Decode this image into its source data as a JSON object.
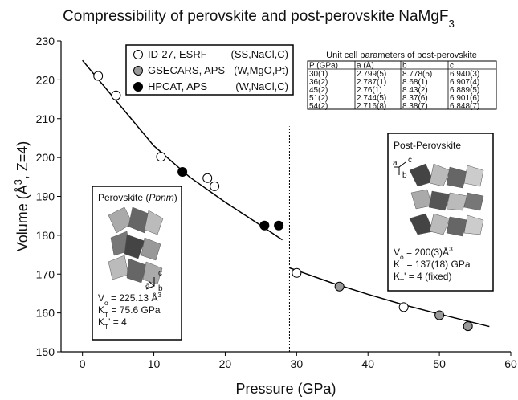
{
  "chart_data": {
    "type": "scatter",
    "title": [
      {
        "t": "Compressibility of perovskite and post-perovskite NaMgF"
      },
      {
        "t": "3",
        "style": "sub"
      }
    ],
    "xlabel": "Pressure (GPa)",
    "ylabel": [
      {
        "t": "Volume (Å"
      },
      {
        "t": "3",
        "style": "sup"
      },
      {
        "t": ", Z=4)"
      }
    ],
    "xlim": [
      -3,
      60
    ],
    "ylim": [
      150,
      230
    ],
    "xticks": [
      0,
      10,
      20,
      30,
      40,
      50,
      60
    ],
    "yticks": [
      150,
      160,
      170,
      180,
      190,
      200,
      210,
      220,
      230
    ],
    "series": [
      {
        "name": "ID-27, ESRF",
        "conditions": "(SS,NaCl,C)",
        "color": "#ffffff",
        "x": [
          2.2,
          4.7,
          11,
          17.5,
          18.5,
          30,
          45
        ],
        "values": [
          221,
          216,
          200.2,
          194.7,
          192.6,
          170.3,
          161.5
        ]
      },
      {
        "name": "GSECARS, APS",
        "conditions": "(W,MgO,Pt)",
        "color": "#999999",
        "x": [
          36,
          50,
          54
        ],
        "values": [
          166.8,
          159.4,
          156.6
        ]
      },
      {
        "name": "HPCAT, APS",
        "conditions": "(W,NaCl,C)",
        "color": "#000000",
        "x": [
          14,
          25.5,
          27.5
        ],
        "values": [
          196.3,
          182.5,
          182.5
        ]
      }
    ],
    "fits": [
      {
        "color": "#000000",
        "x": [
          0,
          5,
          10,
          15,
          20,
          25,
          28
        ],
        "values": [
          225,
          214,
          203,
          195,
          188.5,
          182.5,
          178.8
        ]
      },
      {
        "color": "#000000",
        "x": [
          29,
          35,
          40,
          45,
          50,
          57
        ],
        "values": [
          171.6,
          167.7,
          164.8,
          162.1,
          159.7,
          156.5
        ]
      }
    ],
    "boundary": {
      "x": 29,
      "y": [
        150,
        208
      ]
    },
    "table": {
      "title": "Unit cell parameters of post-perovskite",
      "header": [
        "P (GPa)",
        "a (Å)",
        "b",
        "c"
      ],
      "rows": [
        [
          "30(1)",
          "2.799(5)",
          "8.778(5)",
          "6.940(3)"
        ],
        [
          "36(2)",
          "2.787(1)",
          "8.68(1)",
          "6.907(4)"
        ],
        [
          "45(2)",
          "2.76(1)",
          "8.43(2)",
          "6.889(5)"
        ],
        [
          "51(2)",
          "2.744(5)",
          "8.37(6)",
          "6.901(6)"
        ],
        [
          "54(2)",
          "2.716(8)",
          "8.38(7)",
          "6.848(7)"
        ]
      ]
    },
    "insets": [
      {
        "title": [
          {
            "t": "Perovskite ("
          },
          {
            "t": "Pbnm",
            "style": "italic"
          },
          {
            "t": ")"
          }
        ],
        "axes": [
          "a",
          "b",
          "c"
        ],
        "lines": [
          [
            {
              "t": "V"
            },
            {
              "t": "o",
              "style": "sub"
            },
            {
              "t": " = 225.13 Å"
            },
            {
              "t": "3",
              "style": "sup"
            }
          ],
          [
            {
              "t": "K"
            },
            {
              "t": "T",
              "style": "sub"
            },
            {
              "t": " = 75.6 GPa"
            }
          ],
          [
            {
              "t": "K"
            },
            {
              "t": "T",
              "style": "sub"
            },
            {
              "t": "' = 4"
            }
          ]
        ]
      },
      {
        "title": [
          {
            "t": "Post-Perovskite"
          }
        ],
        "axes": [
          "a",
          "b",
          "c"
        ],
        "lines": [
          [
            {
              "t": "V"
            },
            {
              "t": "o",
              "style": "sub"
            },
            {
              "t": " = 200(3)Å"
            },
            {
              "t": "3",
              "style": "sup"
            }
          ],
          [
            {
              "t": "K"
            },
            {
              "t": "T",
              "style": "sub"
            },
            {
              "t": " = 137(18) GPa"
            }
          ],
          [
            {
              "t": "K"
            },
            {
              "t": "T",
              "style": "sub"
            },
            {
              "t": "' = 4 (fixed)"
            }
          ]
        ]
      }
    ]
  }
}
